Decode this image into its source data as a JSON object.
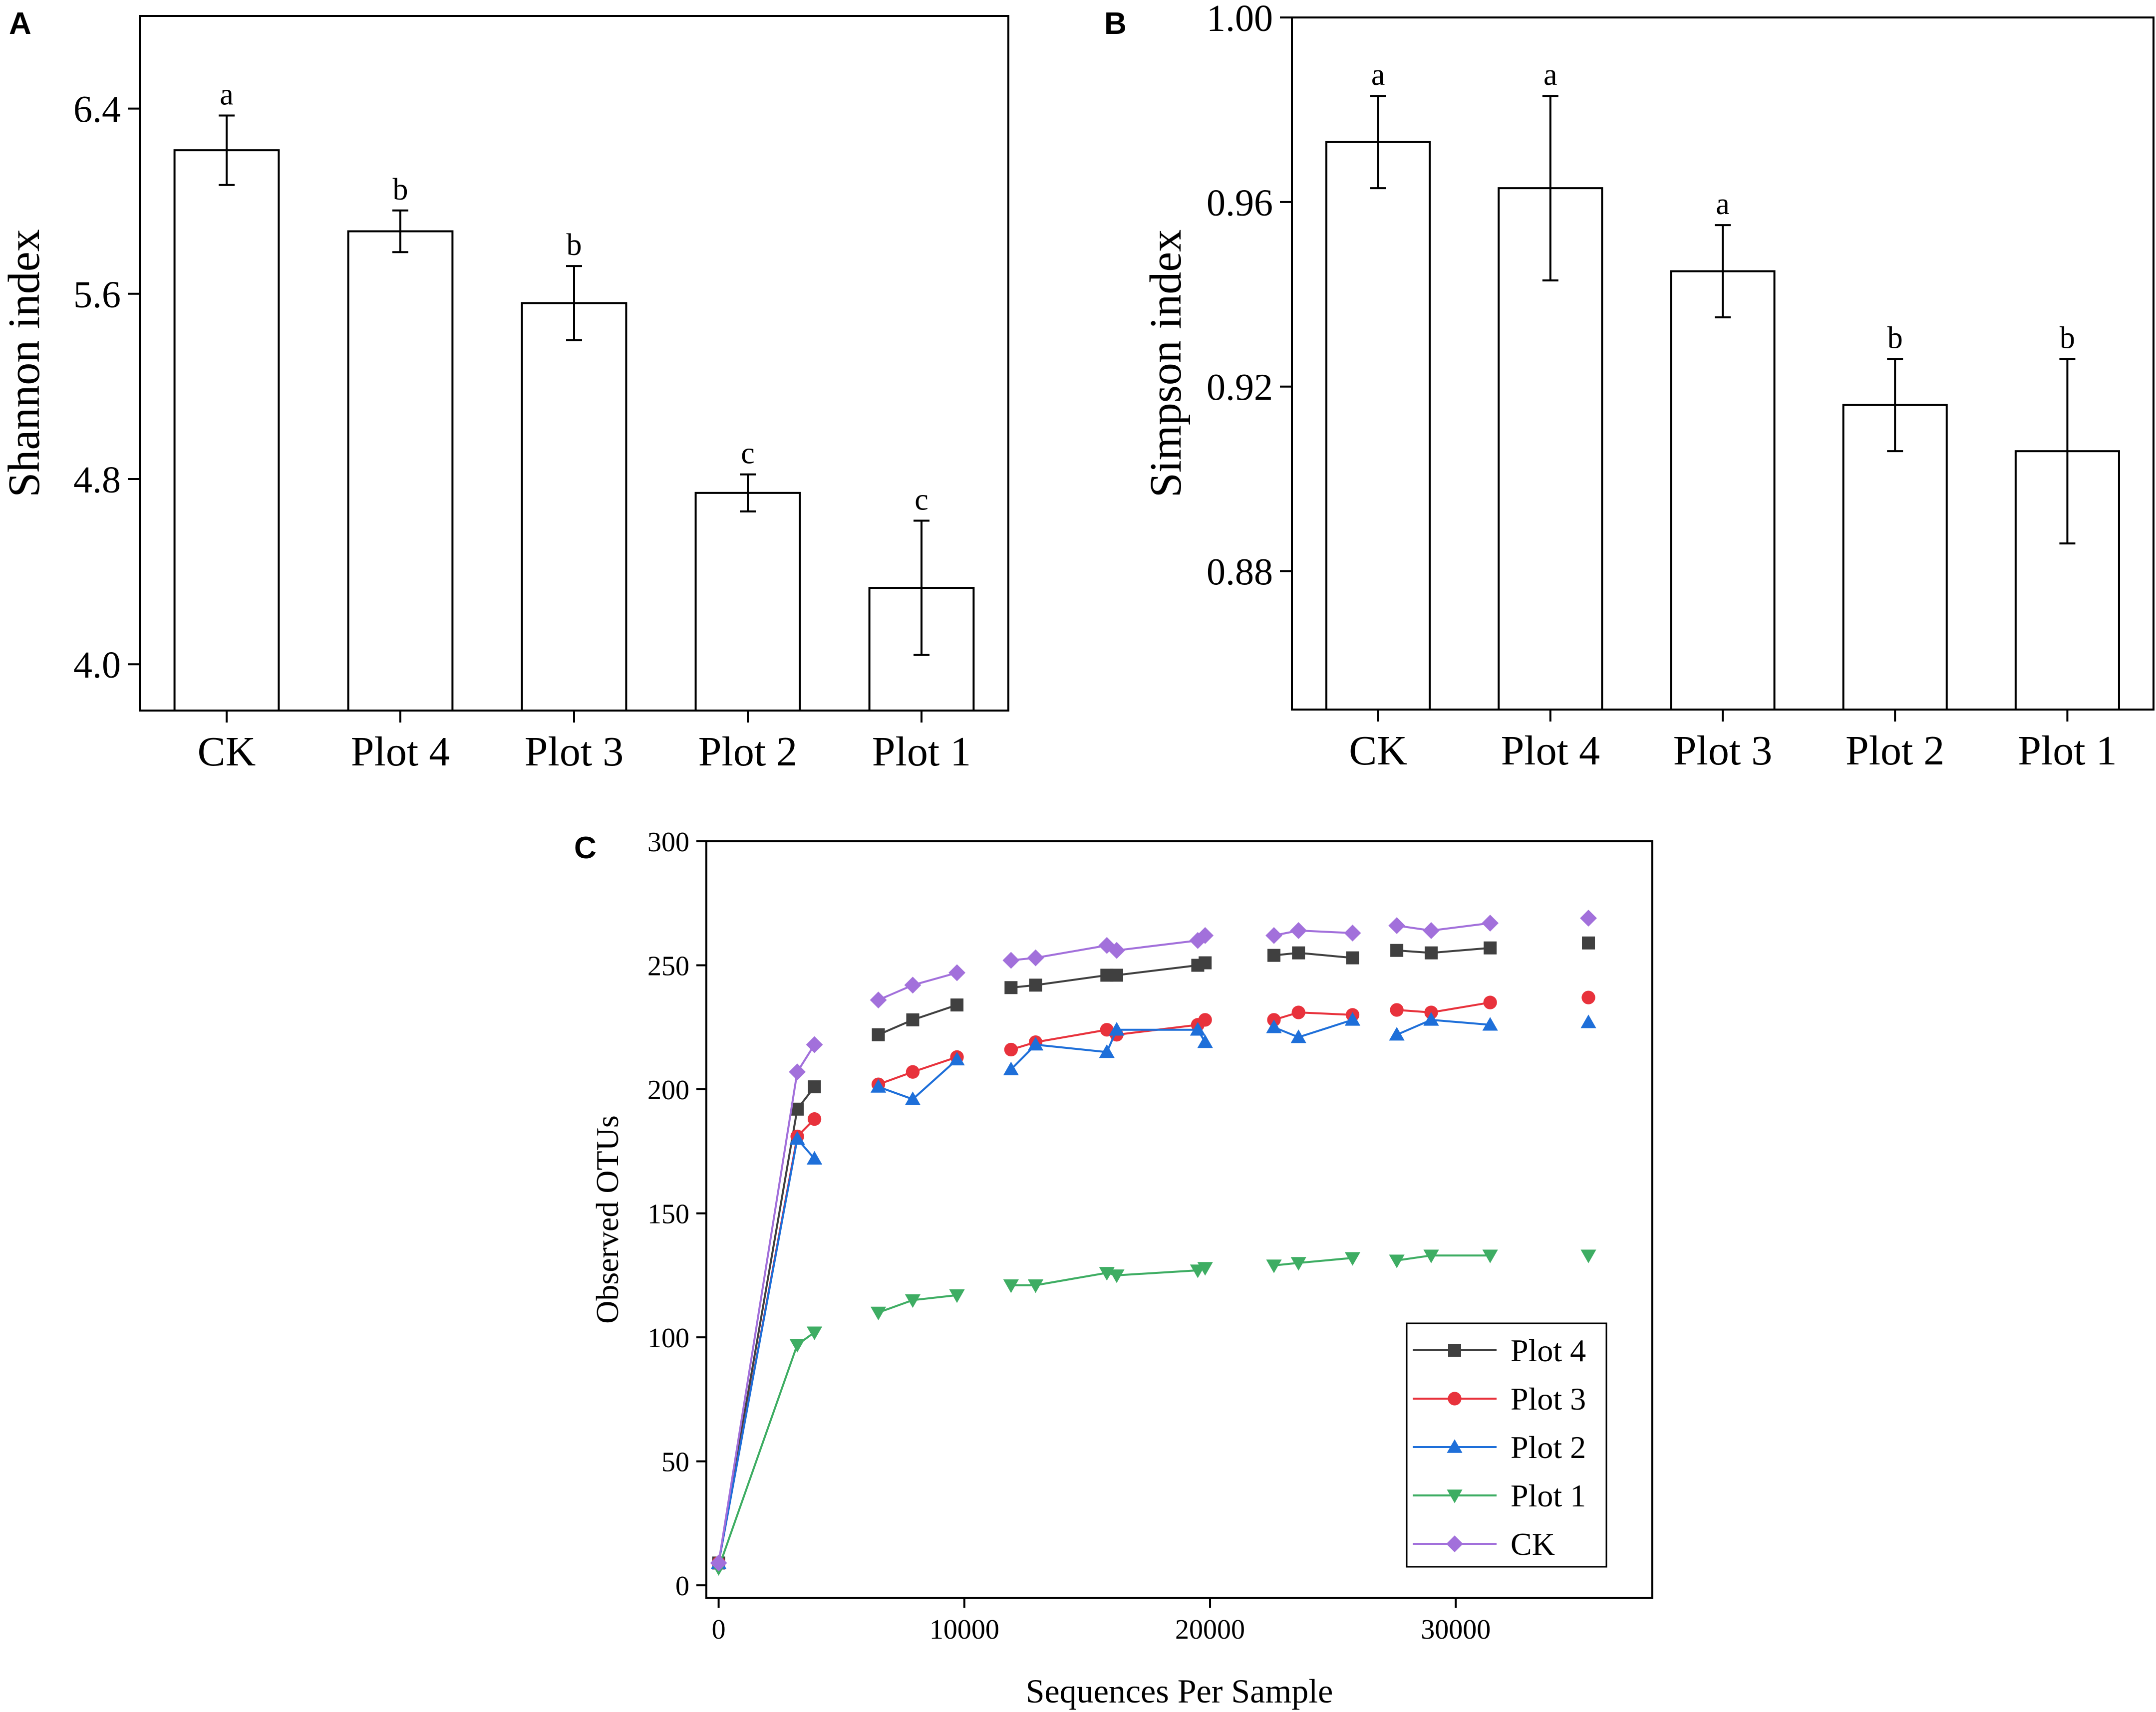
{
  "chart_data": [
    {
      "panel": "A",
      "type": "bar",
      "categories": [
        "CK",
        "Plot 4",
        "Plot 3",
        "Plot 2",
        "Plot 1"
      ],
      "values": [
        6.22,
        5.87,
        5.56,
        4.74,
        4.33
      ],
      "errors": [
        0.15,
        0.09,
        0.16,
        0.08,
        0.29
      ],
      "letters": [
        "a",
        "b",
        "b",
        "c",
        "c"
      ],
      "ylabel": "Shannon index",
      "xlabel": "",
      "ylim": [
        3.8,
        6.8
      ],
      "yticks": [
        "4.0",
        "4.8",
        "5.6",
        "6.4"
      ]
    },
    {
      "panel": "B",
      "type": "bar",
      "categories": [
        "CK",
        "Plot 4",
        "Plot 3",
        "Plot 2",
        "Plot 1"
      ],
      "values": [
        0.973,
        0.963,
        0.945,
        0.916,
        0.906
      ],
      "errors": [
        0.01,
        0.02,
        0.01,
        0.01,
        0.02
      ],
      "letters": [
        "a",
        "a",
        "a",
        "b",
        "b"
      ],
      "ylabel": "Simpson index",
      "xlabel": "",
      "ylim": [
        0.85,
        1.0
      ],
      "yticks": [
        "0.88",
        "0.92",
        "0.96",
        "1.00"
      ]
    },
    {
      "panel": "C",
      "type": "line",
      "xlabel": "Sequences Per Sample",
      "ylabel": "Observed OTUs",
      "xlim": [
        -500,
        38000
      ],
      "ylim": [
        -5,
        300
      ],
      "xticks": [
        "0",
        "10000",
        "20000",
        "30000"
      ],
      "yticks": [
        "0",
        "50",
        "100",
        "150",
        "200",
        "250",
        "300"
      ],
      "legend_position": "bottom-right",
      "series": [
        {
          "name": "Plot 4",
          "color": "#404040",
          "marker": "square",
          "segments": [
            [
              [
                0,
                9
              ],
              [
                3200,
                192
              ],
              [
                3900,
                201
              ]
            ],
            [
              [
                6500,
                222
              ],
              [
                7900,
                228
              ],
              [
                9700,
                234
              ]
            ],
            [
              [
                11900,
                241
              ],
              [
                12900,
                242
              ],
              [
                15800,
                246
              ],
              [
                16200,
                246
              ],
              [
                19500,
                250
              ],
              [
                19800,
                251
              ]
            ],
            [
              [
                22600,
                254
              ],
              [
                23600,
                255
              ],
              [
                25800,
                253
              ]
            ],
            [
              [
                27600,
                256
              ],
              [
                29000,
                255
              ],
              [
                31400,
                257
              ]
            ],
            [
              [
                35400,
                259
              ]
            ]
          ]
        },
        {
          "name": "Plot 3",
          "color": "#E8323C",
          "marker": "circle",
          "segments": [
            [
              [
                0,
                9
              ],
              [
                3200,
                181
              ],
              [
                3900,
                188
              ]
            ],
            [
              [
                6500,
                202
              ],
              [
                7900,
                207
              ],
              [
                9700,
                213
              ]
            ],
            [
              [
                11900,
                216
              ],
              [
                12900,
                219
              ],
              [
                15800,
                224
              ],
              [
                16200,
                222
              ],
              [
                19500,
                226
              ],
              [
                19800,
                228
              ]
            ],
            [
              [
                22600,
                228
              ],
              [
                23600,
                231
              ],
              [
                25800,
                230
              ]
            ],
            [
              [
                27600,
                232
              ],
              [
                29000,
                231
              ],
              [
                31400,
                235
              ]
            ],
            [
              [
                35400,
                237
              ]
            ]
          ]
        },
        {
          "name": "Plot 2",
          "color": "#1E6FD9",
          "marker": "triangle-up",
          "segments": [
            [
              [
                0,
                9
              ],
              [
                3200,
                180
              ],
              [
                3900,
                172
              ]
            ],
            [
              [
                6500,
                201
              ],
              [
                7900,
                196
              ],
              [
                9700,
                212
              ]
            ],
            [
              [
                11900,
                208
              ],
              [
                12900,
                218
              ],
              [
                15800,
                215
              ],
              [
                16200,
                224
              ],
              [
                19500,
                224
              ],
              [
                19800,
                219
              ]
            ],
            [
              [
                22600,
                225
              ],
              [
                23600,
                221
              ],
              [
                25800,
                228
              ]
            ],
            [
              [
                27600,
                222
              ],
              [
                29000,
                228
              ],
              [
                31400,
                226
              ]
            ],
            [
              [
                35400,
                227
              ]
            ]
          ]
        },
        {
          "name": "Plot 1",
          "color": "#3EAD63",
          "marker": "triangle-down",
          "segments": [
            [
              [
                0,
                7
              ],
              [
                3200,
                97
              ],
              [
                3900,
                102
              ]
            ],
            [
              [
                6500,
                110
              ],
              [
                7900,
                115
              ],
              [
                9700,
                117
              ]
            ],
            [
              [
                11900,
                121
              ],
              [
                12900,
                121
              ],
              [
                15800,
                126
              ],
              [
                16200,
                125
              ],
              [
                19500,
                127
              ],
              [
                19800,
                128
              ]
            ],
            [
              [
                22600,
                129
              ],
              [
                23600,
                130
              ],
              [
                25800,
                132
              ]
            ],
            [
              [
                27600,
                131
              ],
              [
                29000,
                133
              ],
              [
                31400,
                133
              ]
            ],
            [
              [
                35400,
                133
              ]
            ]
          ]
        },
        {
          "name": "CK",
          "color": "#A270DB",
          "marker": "diamond",
          "segments": [
            [
              [
                0,
                9
              ],
              [
                3200,
                207
              ],
              [
                3900,
                218
              ]
            ],
            [
              [
                6500,
                236
              ],
              [
                7900,
                242
              ],
              [
                9700,
                247
              ]
            ],
            [
              [
                11900,
                252
              ],
              [
                12900,
                253
              ],
              [
                15800,
                258
              ],
              [
                16200,
                256
              ],
              [
                19500,
                260
              ],
              [
                19800,
                262
              ]
            ],
            [
              [
                22600,
                262
              ],
              [
                23600,
                264
              ],
              [
                25800,
                263
              ]
            ],
            [
              [
                27600,
                266
              ],
              [
                29000,
                264
              ],
              [
                31400,
                267
              ]
            ],
            [
              [
                35400,
                269
              ]
            ]
          ]
        }
      ]
    }
  ],
  "panel_labels": [
    "A",
    "B",
    "C"
  ]
}
